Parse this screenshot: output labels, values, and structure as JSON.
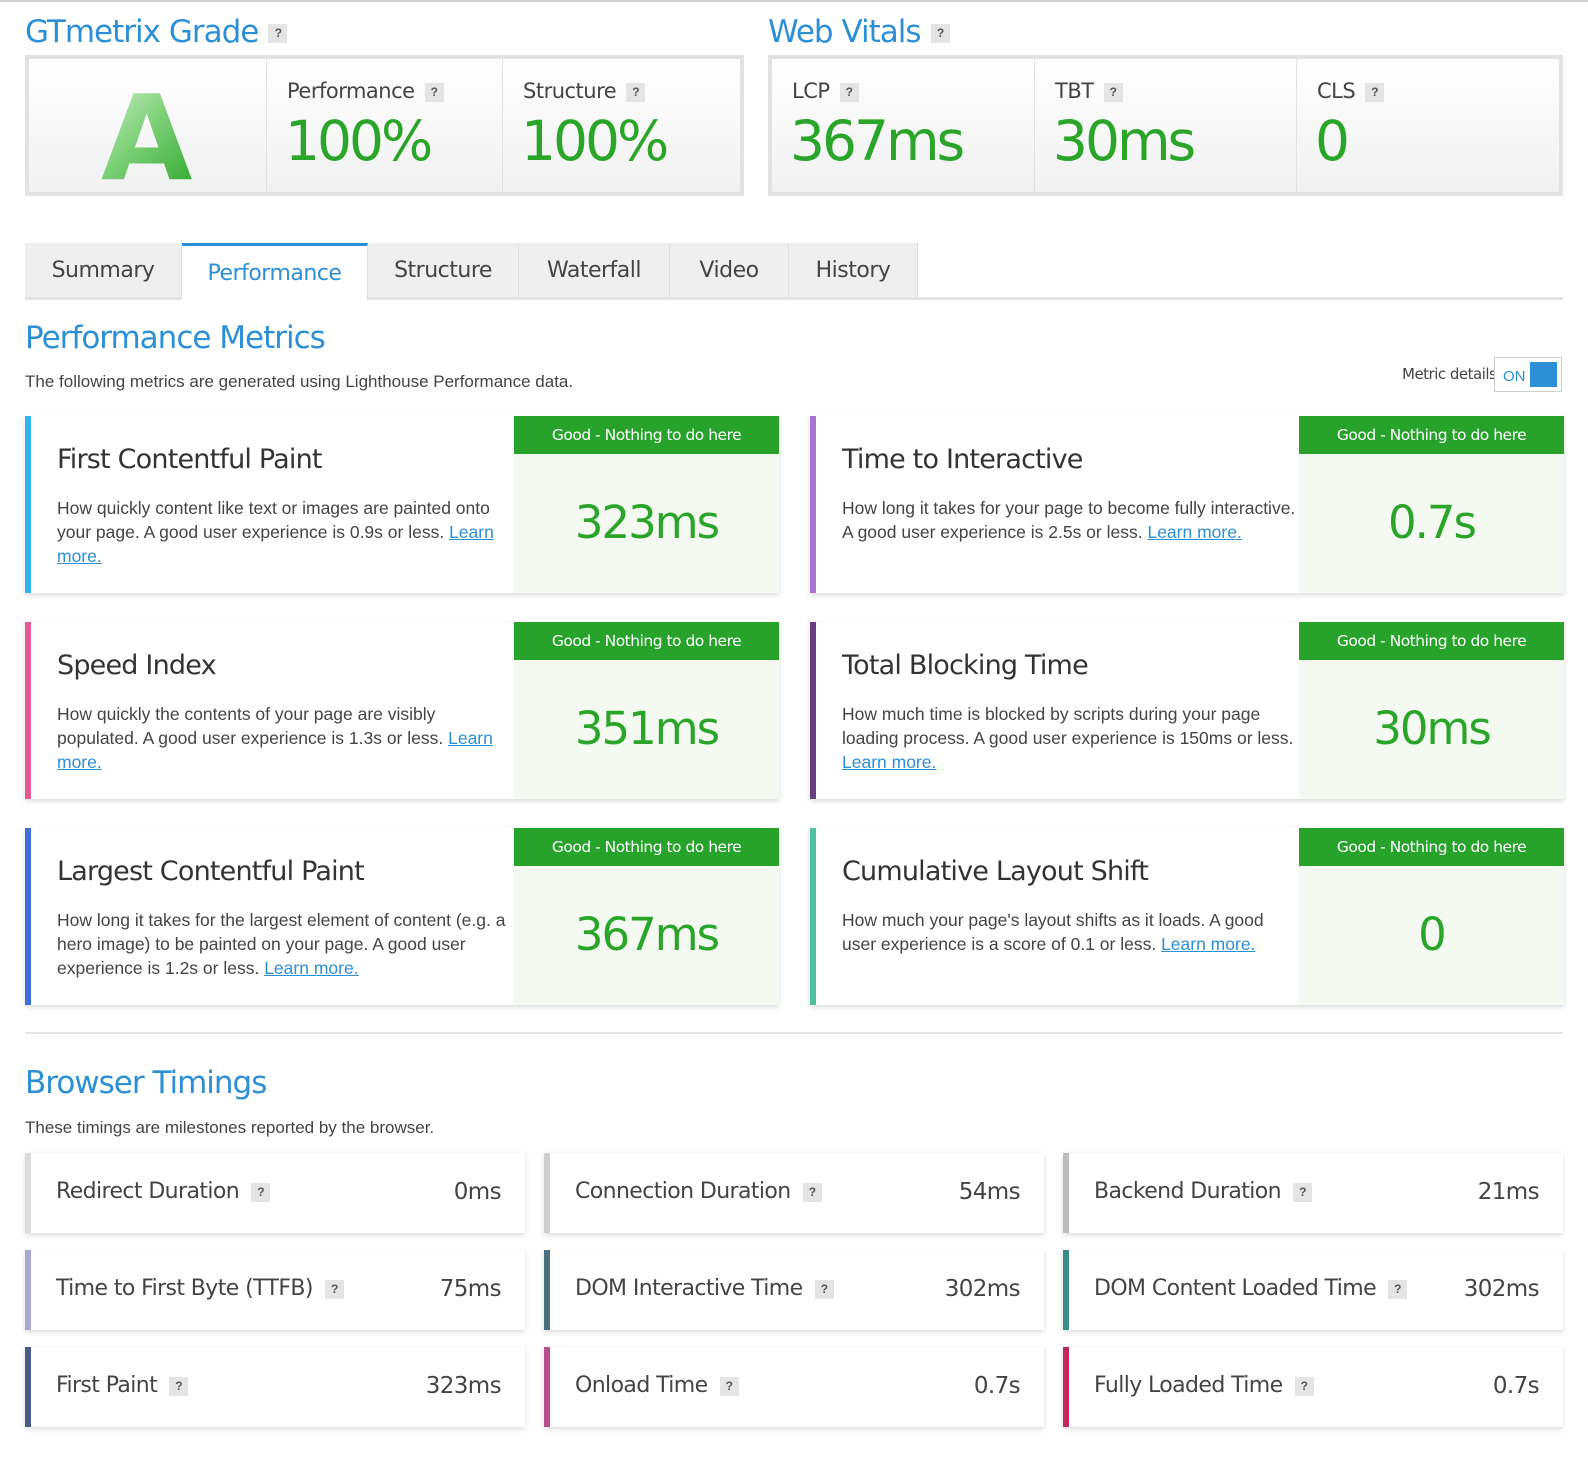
{
  "grade_section": {
    "title": "GTmetrix Grade",
    "help": "?",
    "grade": "A",
    "performance_label": "Performance",
    "performance_value": "100%",
    "structure_label": "Structure",
    "structure_value": "100%"
  },
  "web_vitals": {
    "title": "Web Vitals",
    "help": "?",
    "lcp_label": "LCP",
    "lcp_value": "367ms",
    "tbt_label": "TBT",
    "tbt_value": "30ms",
    "cls_label": "CLS",
    "cls_value": "0"
  },
  "tabs": [
    "Summary",
    "Performance",
    "Structure",
    "Waterfall",
    "Video",
    "History"
  ],
  "active_tab": "Performance",
  "performance_metrics": {
    "title": "Performance Metrics",
    "description": "The following metrics are generated using Lighthouse Performance data.",
    "metric_details_label": "Metric details",
    "toggle_state": "ON",
    "badge": "Good - Nothing to do here",
    "learn_more": "Learn more.",
    "cards": [
      {
        "title": "First Contentful Paint",
        "desc": "How quickly content like text or images are painted onto your page. A good user experience is 0.9s or less.",
        "value": "323ms",
        "color": "#35b4e6"
      },
      {
        "title": "Time to Interactive",
        "desc": "How long it takes for your page to become fully interactive. A good user experience is 2.5s or less.",
        "value": "0.7s",
        "color": "#a873d1"
      },
      {
        "title": "Speed Index",
        "desc": "How quickly the contents of your page are visibly populated. A good user experience is 1.3s or less.",
        "value": "351ms",
        "color": "#e35a97"
      },
      {
        "title": "Total Blocking Time",
        "desc": "How much time is blocked by scripts during your page loading process. A good user experience is 150ms or less.",
        "value": "30ms",
        "color": "#6a3f7f"
      },
      {
        "title": "Largest Contentful Paint",
        "desc": "How long it takes for the largest element of content (e.g. a hero image) to be painted on your page. A good user experience is 1.2s or less.",
        "value": "367ms",
        "color": "#3c6fd8"
      },
      {
        "title": "Cumulative Layout Shift",
        "desc": "How much your page's layout shifts as it loads. A good user experience is a score of 0.1 or less.",
        "value": "0",
        "color": "#4fc0a0"
      }
    ]
  },
  "browser_timings": {
    "title": "Browser Timings",
    "description": "These timings are milestones reported by the browser.",
    "items": [
      {
        "label": "Redirect Duration",
        "value": "0ms",
        "color": "#dcdcdc"
      },
      {
        "label": "Connection Duration",
        "value": "54ms",
        "color": "#cfcfcf"
      },
      {
        "label": "Backend Duration",
        "value": "21ms",
        "color": "#bdbdbd"
      },
      {
        "label": "Time to First Byte (TTFB)",
        "value": "75ms",
        "color": "#a3a9d3"
      },
      {
        "label": "DOM Interactive Time",
        "value": "302ms",
        "color": "#4a7080"
      },
      {
        "label": "DOM Content Loaded Time",
        "value": "302ms",
        "color": "#3f8c86"
      },
      {
        "label": "First Paint",
        "value": "323ms",
        "color": "#4b5a8a"
      },
      {
        "label": "Onload Time",
        "value": "0.7s",
        "color": "#b5508a"
      },
      {
        "label": "Fully Loaded Time",
        "value": "0.7s",
        "color": "#c0285f"
      }
    ]
  }
}
